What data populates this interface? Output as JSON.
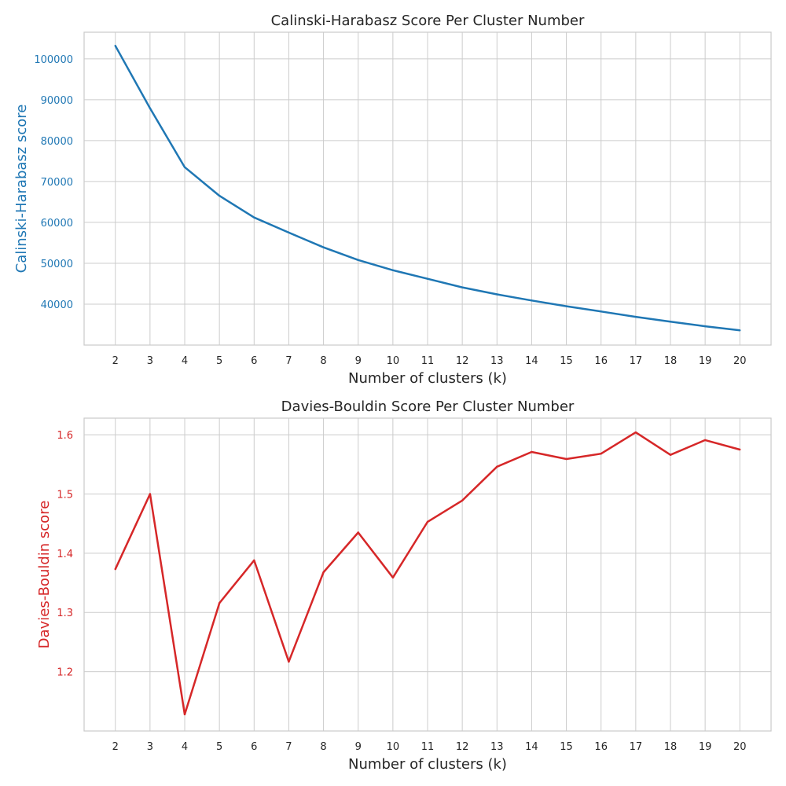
{
  "chart_data": [
    {
      "type": "line",
      "title": "Calinski-Harabasz Score Per Cluster Number",
      "xlabel": "Number of clusters (k)",
      "ylabel": "Calinski-Harabasz score",
      "color": "#1f77b4",
      "grid": true,
      "x": [
        2,
        3,
        4,
        5,
        6,
        7,
        8,
        9,
        10,
        11,
        12,
        13,
        14,
        15,
        16,
        17,
        18,
        19,
        20
      ],
      "y": [
        103200,
        87900,
        73500,
        66500,
        61200,
        57500,
        53900,
        50800,
        48300,
        46200,
        44100,
        42400,
        40900,
        39500,
        38200,
        36900,
        35700,
        34600,
        33600
      ],
      "xlim": [
        1.1,
        20.9
      ],
      "ylim": [
        30000,
        106500
      ],
      "yticks": [
        40000,
        50000,
        60000,
        70000,
        80000,
        90000,
        100000
      ],
      "yticklabels": [
        "40000",
        "50000",
        "60000",
        "70000",
        "80000",
        "90000",
        "100000"
      ]
    },
    {
      "type": "line",
      "title": "Davies-Bouldin Score Per Cluster Number",
      "xlabel": "Number of clusters (k)",
      "ylabel": "Davies-Bouldin score",
      "color": "#d62728",
      "grid": true,
      "x": [
        2,
        3,
        4,
        5,
        6,
        7,
        8,
        9,
        10,
        11,
        12,
        13,
        14,
        15,
        16,
        17,
        18,
        19,
        20
      ],
      "y": [
        1.373,
        1.5,
        1.128,
        1.316,
        1.388,
        1.217,
        1.368,
        1.435,
        1.359,
        1.453,
        1.489,
        1.546,
        1.571,
        1.559,
        1.568,
        1.604,
        1.566,
        1.591,
        1.575
      ],
      "xlim": [
        1.1,
        20.9
      ],
      "ylim": [
        1.1,
        1.628
      ],
      "yticks": [
        1.2,
        1.3,
        1.4,
        1.5,
        1.6
      ],
      "yticklabels": [
        "1.2",
        "1.3",
        "1.4",
        "1.5",
        "1.6"
      ]
    }
  ]
}
